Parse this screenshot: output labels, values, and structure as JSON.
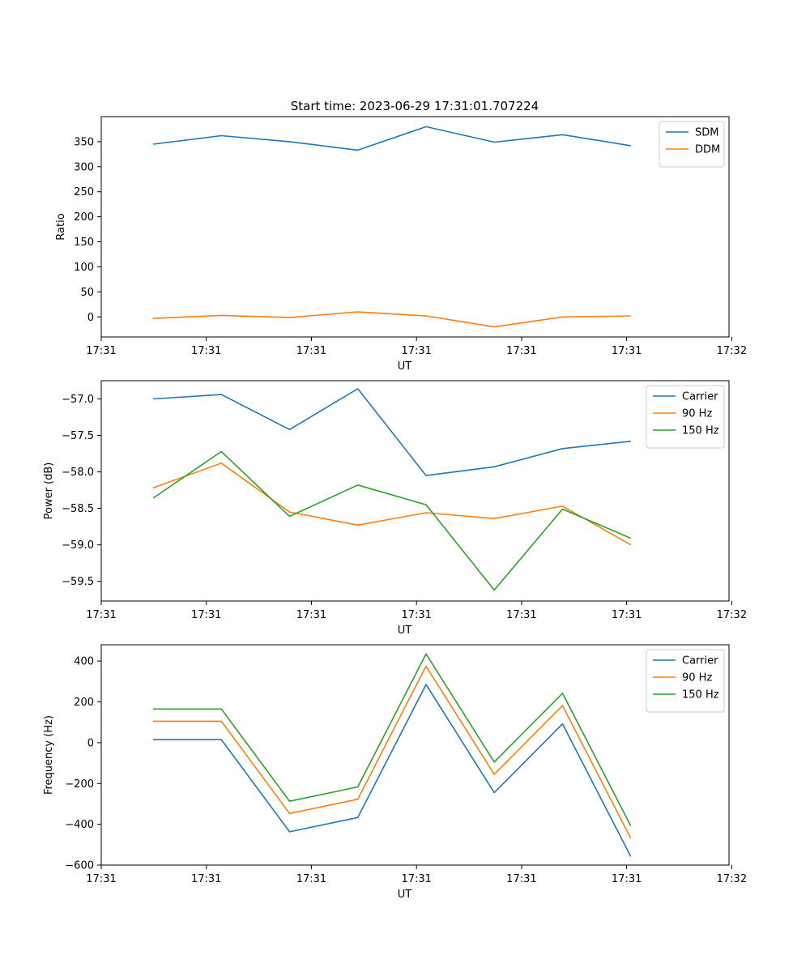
{
  "figure": {
    "title": "Start time: 2023-06-29 17:31:01.707224"
  },
  "chart_data": [
    {
      "type": "line",
      "xlabel": "UT",
      "ylabel": "Ratio",
      "xlim": [
        0,
        9.2
      ],
      "ylim": [
        -40,
        400
      ],
      "x": [
        0.76,
        1.76,
        2.76,
        3.76,
        4.76,
        5.76,
        6.76,
        7.76
      ],
      "xticks": [
        0,
        1.54,
        3.08,
        4.62,
        6.16,
        7.7,
        9.24
      ],
      "xtick_labels": [
        "17:31",
        "17:31",
        "17:31",
        "17:31",
        "17:31",
        "17:31",
        "17:32"
      ],
      "yticks": [
        0,
        50,
        100,
        150,
        200,
        250,
        300,
        350
      ],
      "ytick_labels": [
        "0",
        "50",
        "100",
        "150",
        "200",
        "250",
        "300",
        "350"
      ],
      "legend": "top-right",
      "series": [
        {
          "name": "SDM",
          "color": "#1f77b4",
          "values": [
            345,
            362,
            350,
            333,
            380,
            349,
            364,
            342
          ]
        },
        {
          "name": "DDM",
          "color": "#ff7f0e",
          "values": [
            -3,
            3,
            -1,
            10,
            2,
            -20,
            0,
            2
          ]
        }
      ]
    },
    {
      "type": "line",
      "xlabel": "UT",
      "ylabel": "Power (dB)",
      "xlim": [
        0,
        9.2
      ],
      "ylim": [
        -59.77,
        -56.75
      ],
      "x": [
        0.76,
        1.76,
        2.76,
        3.76,
        4.76,
        5.76,
        6.76,
        7.76
      ],
      "xticks": [
        0,
        1.54,
        3.08,
        4.62,
        6.16,
        7.7,
        9.24
      ],
      "xtick_labels": [
        "17:31",
        "17:31",
        "17:31",
        "17:31",
        "17:31",
        "17:31",
        "17:32"
      ],
      "yticks": [
        -59.5,
        -59.0,
        -58.5,
        -58.0,
        -57.5,
        -57.0
      ],
      "ytick_labels": [
        "−59.5",
        "−59.0",
        "−58.5",
        "−58.0",
        "−57.5",
        "−57.0"
      ],
      "legend": "top-right",
      "series": [
        {
          "name": "Carrier",
          "color": "#1f77b4",
          "values": [
            -57.0,
            -56.94,
            -57.42,
            -56.86,
            -58.05,
            -57.93,
            -57.68,
            -57.58
          ]
        },
        {
          "name": "90 Hz",
          "color": "#ff7f0e",
          "values": [
            -58.22,
            -57.88,
            -58.55,
            -58.73,
            -58.56,
            -58.64,
            -58.47,
            -59.0
          ]
        },
        {
          "name": "150 Hz",
          "color": "#2ca02c",
          "values": [
            -58.36,
            -57.72,
            -58.61,
            -58.18,
            -58.45,
            -59.62,
            -58.51,
            -58.91
          ]
        }
      ]
    },
    {
      "type": "line",
      "xlabel": "UT",
      "ylabel": "Frequency (Hz)",
      "xlim": [
        0,
        9.2
      ],
      "ylim": [
        -600,
        480
      ],
      "x": [
        0.76,
        1.76,
        2.76,
        3.76,
        4.76,
        5.76,
        6.76,
        7.76
      ],
      "xticks": [
        0,
        1.54,
        3.08,
        4.62,
        6.16,
        7.7,
        9.24
      ],
      "xtick_labels": [
        "17:31",
        "17:31",
        "17:31",
        "17:31",
        "17:31",
        "17:31",
        "17:32"
      ],
      "yticks": [
        -600,
        -400,
        -200,
        0,
        200,
        400
      ],
      "ytick_labels": [
        "−600",
        "−400",
        "−200",
        "0",
        "200",
        "400"
      ],
      "legend": "top-right",
      "series": [
        {
          "name": "Carrier",
          "color": "#1f77b4",
          "values": [
            15,
            15,
            -437,
            -367,
            285,
            -245,
            92,
            -558
          ]
        },
        {
          "name": "90 Hz",
          "color": "#ff7f0e",
          "values": [
            105,
            105,
            -347,
            -277,
            375,
            -155,
            182,
            -468
          ]
        },
        {
          "name": "150 Hz",
          "color": "#2ca02c",
          "values": [
            165,
            165,
            -287,
            -217,
            435,
            -95,
            242,
            -408
          ]
        }
      ]
    }
  ]
}
